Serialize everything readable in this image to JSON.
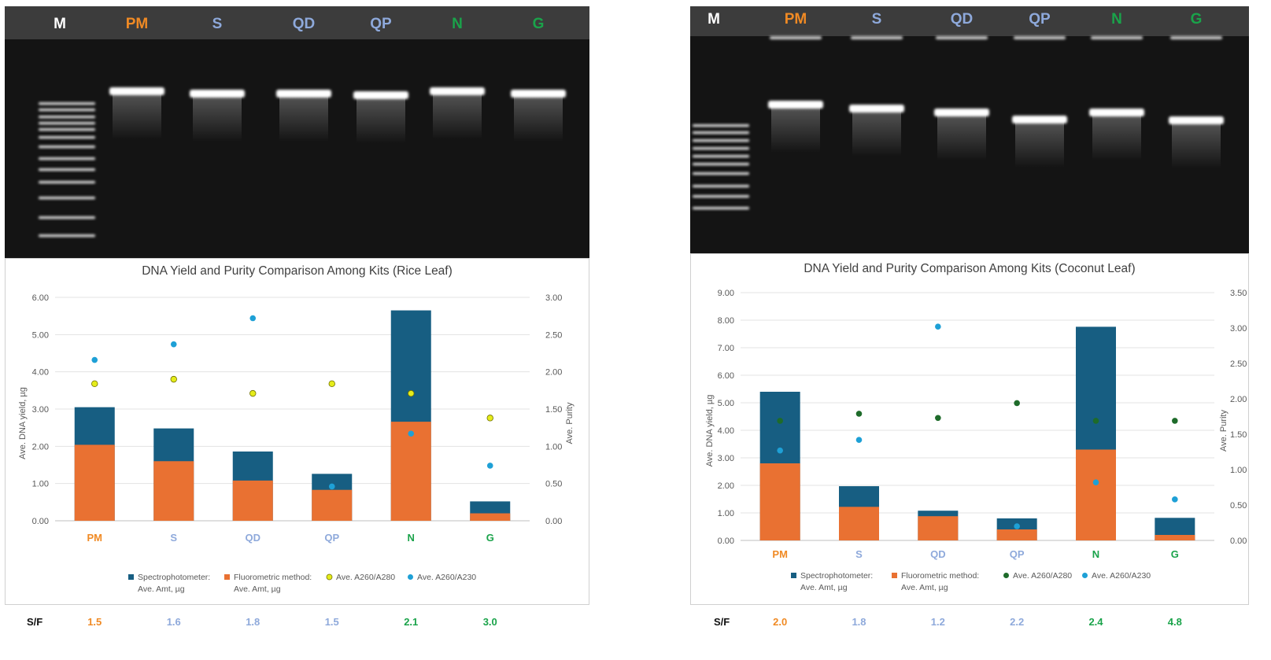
{
  "colors": {
    "orange": "#F08A24",
    "blue": "#8EA9DB",
    "green": "#1AA34A",
    "white": "#FFFFFF",
    "spectro": "#175E82",
    "fluoro": "#E97132",
    "a280_rice": "#E5EC1A",
    "a280_coconut": "#1E6B2A",
    "a230": "#1EA0D6",
    "gel_header": "#3C3C3C"
  },
  "panels": [
    {
      "id": "rice",
      "gel": {
        "lanes": [
          {
            "label": "M",
            "color": "white"
          },
          {
            "label": "PM",
            "color": "orange"
          },
          {
            "label": "S",
            "color": "blue"
          },
          {
            "label": "QD",
            "color": "blue"
          },
          {
            "label": "QP",
            "color": "blue"
          },
          {
            "label": "N",
            "color": "green"
          },
          {
            "label": "G",
            "color": "green"
          }
        ]
      },
      "chart_data": {
        "type": "bar",
        "title": "DNA Yield and Purity Comparison Among Kits (Rice Leaf)",
        "categories": [
          "PM",
          "S",
          "QD",
          "QP",
          "N",
          "G"
        ],
        "category_colors": [
          "orange",
          "blue",
          "blue",
          "blue",
          "green",
          "green"
        ],
        "ylabel": "Ave. DNA yield, µg",
        "y2label": "Ave. Purity",
        "ylim": [
          0,
          6
        ],
        "y2lim": [
          0,
          3
        ],
        "yticks": [
          "0.00",
          "1.00",
          "2.00",
          "3.00",
          "4.00",
          "5.00",
          "6.00"
        ],
        "y2ticks": [
          "0.00",
          "0.50",
          "1.00",
          "1.50",
          "2.00",
          "2.50",
          "3.00"
        ],
        "series": [
          {
            "name_line1": "Spectrophotometer:",
            "name_line2": "Ave. Amt, µg",
            "kind": "bar",
            "color_key": "spectro",
            "values": [
              3.05,
              2.48,
              1.86,
              1.26,
              5.65,
              0.52
            ]
          },
          {
            "name_line1": "Fluorometric method:",
            "name_line2": "Ave. Amt, µg",
            "kind": "bar",
            "color_key": "fluoro",
            "values": [
              2.04,
              1.6,
              1.08,
              0.83,
              2.66,
              0.2
            ]
          },
          {
            "name_line1": "Ave. A260/A280",
            "name_line2": "",
            "kind": "point",
            "color_key": "a280_rice",
            "values": [
              1.84,
              1.9,
              1.71,
              1.84,
              1.71,
              1.38
            ]
          },
          {
            "name_line1": "Ave. A260/A230",
            "name_line2": "",
            "kind": "point",
            "color_key": "a230",
            "values": [
              2.16,
              2.37,
              2.72,
              0.46,
              1.17,
              0.74
            ]
          }
        ]
      },
      "sf": {
        "label": "S/F",
        "values": [
          "1.5",
          "1.6",
          "1.8",
          "1.5",
          "2.1",
          "3.0"
        ]
      }
    },
    {
      "id": "coconut",
      "gel": {
        "lanes": [
          {
            "label": "M",
            "color": "white"
          },
          {
            "label": "PM",
            "color": "orange"
          },
          {
            "label": "S",
            "color": "blue"
          },
          {
            "label": "QD",
            "color": "blue"
          },
          {
            "label": "QP",
            "color": "blue"
          },
          {
            "label": "N",
            "color": "green"
          },
          {
            "label": "G",
            "color": "green"
          }
        ]
      },
      "chart_data": {
        "type": "bar",
        "title": "DNA Yield and Purity Comparison Among Kits (Coconut Leaf)",
        "categories": [
          "PM",
          "S",
          "QD",
          "QP",
          "N",
          "G"
        ],
        "category_colors": [
          "orange",
          "blue",
          "blue",
          "blue",
          "green",
          "green"
        ],
        "ylabel": "Ave. DNA yield, µg",
        "y2label": "Ave. Purity",
        "ylim": [
          0,
          9
        ],
        "y2lim": [
          0,
          3.5
        ],
        "yticks": [
          "0.00",
          "1.00",
          "2.00",
          "3.00",
          "4.00",
          "5.00",
          "6.00",
          "7.00",
          "8.00",
          "9.00"
        ],
        "y2ticks": [
          "0.00",
          "0.50",
          "1.00",
          "1.50",
          "2.00",
          "2.50",
          "3.00",
          "3.50"
        ],
        "series": [
          {
            "name_line1": "Spectrophotometer:",
            "name_line2": "Ave. Amt, µg",
            "kind": "bar",
            "color_key": "spectro",
            "values": [
              5.4,
              1.97,
              1.08,
              0.8,
              7.76,
              0.82
            ]
          },
          {
            "name_line1": "Fluorometric method:",
            "name_line2": "Ave. Amt, µg",
            "kind": "bar",
            "color_key": "fluoro",
            "values": [
              2.8,
              1.22,
              0.88,
              0.4,
              3.3,
              0.2
            ]
          },
          {
            "name_line1": "Ave. A260/A280",
            "name_line2": "",
            "kind": "point",
            "color_key": "a280_coconut",
            "values": [
              1.69,
              1.79,
              1.73,
              1.94,
              1.69,
              1.69
            ]
          },
          {
            "name_line1": "Ave. A260/A230",
            "name_line2": "",
            "kind": "point",
            "color_key": "a230",
            "values": [
              1.27,
              1.42,
              3.02,
              0.2,
              0.82,
              0.58
            ]
          }
        ]
      },
      "sf": {
        "label": "S/F",
        "values": [
          "2.0",
          "1.8",
          "1.2",
          "2.2",
          "2.4",
          "4.8"
        ]
      }
    }
  ]
}
